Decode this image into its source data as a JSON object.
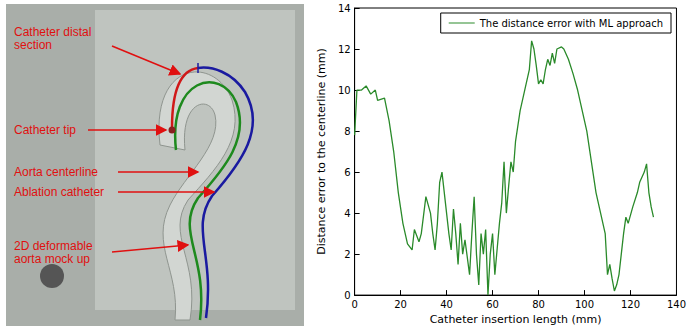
{
  "photo": {
    "labels": [
      "Catheter distal section",
      "Catheter tip",
      "Aorta centerline",
      "Ablation catheter",
      "2D deformable aorta mock up"
    ]
  },
  "chart_data": {
    "type": "line",
    "xlabel": "Catheter insertion length (mm)",
    "ylabel": "Distance error to the centerline (mm)",
    "xlim": [
      0,
      140
    ],
    "xticks": [
      0,
      20,
      40,
      60,
      80,
      100,
      120,
      140
    ],
    "ylim": [
      0,
      14
    ],
    "yticks": [
      0,
      2,
      4,
      6,
      8,
      10,
      12,
      14
    ],
    "grid": false,
    "legend": "upper right",
    "x": [
      0,
      1,
      3,
      5,
      7,
      9,
      10,
      13,
      15,
      17,
      19,
      21,
      23,
      25,
      26,
      28,
      29,
      31,
      33,
      34,
      35,
      36,
      37,
      38,
      39,
      41,
      42,
      43,
      44,
      45,
      46,
      47,
      48,
      50,
      51,
      52,
      53,
      54,
      55,
      56,
      57,
      58,
      59,
      60,
      61,
      63,
      64,
      65,
      66,
      67,
      68,
      69,
      70,
      72,
      74,
      76,
      77,
      78,
      79,
      80,
      81,
      82,
      83,
      84,
      85,
      86,
      87,
      88,
      90,
      91,
      93,
      95,
      97,
      99,
      101,
      103,
      105,
      107,
      109,
      110,
      111,
      112,
      113,
      114,
      115,
      116,
      117,
      118,
      119,
      121,
      123,
      124,
      126,
      127,
      128,
      129,
      130
    ],
    "series": [
      {
        "name": "The distance error with ML approach",
        "color": "#2a8a2a",
        "line_style": "solid",
        "values": [
          7.8,
          10.0,
          10.0,
          10.2,
          9.8,
          10.0,
          9.5,
          9.6,
          8.5,
          7.0,
          5.0,
          3.5,
          2.5,
          2.2,
          3.2,
          2.6,
          3.0,
          4.8,
          4.0,
          3.0,
          2.2,
          3.5,
          5.5,
          6.0,
          5.0,
          3.0,
          2.2,
          4.2,
          3.0,
          1.5,
          3.5,
          2.0,
          2.7,
          1.0,
          3.0,
          4.8,
          2.0,
          0.5,
          3.0,
          2.0,
          3.2,
          0.0,
          2.0,
          3.0,
          1.0,
          3.5,
          4.5,
          6.5,
          4.0,
          5.3,
          6.5,
          6.0,
          7.5,
          9.0,
          10.0,
          11.0,
          12.4,
          12.0,
          11.2,
          10.3,
          10.5,
          10.3,
          11.0,
          11.5,
          11.2,
          11.8,
          11.3,
          12.0,
          12.1,
          12.0,
          11.5,
          10.8,
          10.0,
          9.0,
          8.0,
          6.5,
          5.0,
          4.0,
          3.0,
          1.0,
          1.5,
          0.8,
          0.2,
          0.5,
          1.0,
          2.0,
          3.0,
          3.8,
          3.5,
          4.3,
          5.0,
          5.5,
          6.0,
          6.4,
          5.0,
          4.3,
          3.8
        ]
      }
    ]
  }
}
